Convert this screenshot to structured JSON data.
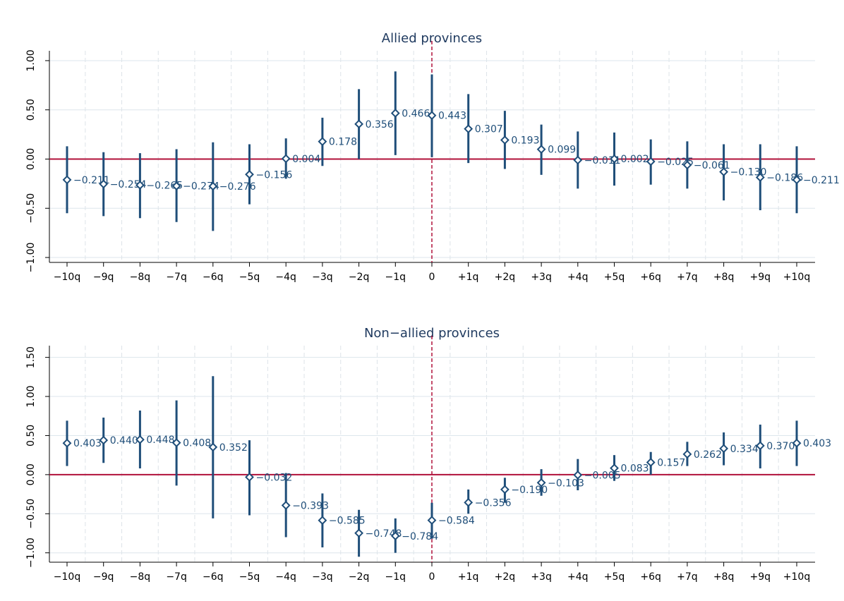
{
  "colors": {
    "ci_line": "#1f4e79",
    "marker_stroke": "#1f4e79",
    "marker_fill": "#ffffff",
    "zero_line": "#b0103a",
    "event_line": "#b0103a",
    "grid": "#dde6ec",
    "vgrid": "#dde3e8",
    "axis": "#000000",
    "title": "#1f3a5f",
    "label": "#1f4e79"
  },
  "chart_data": [
    {
      "type": "scatter",
      "title": "Allied provinces",
      "categories": [
        "−10q",
        "−9q",
        "−8q",
        "−7q",
        "−6q",
        "−5q",
        "−4q",
        "−3q",
        "−2q",
        "−1q",
        "0",
        "+1q",
        "+2q",
        "+3q",
        "+4q",
        "+5q",
        "+6q",
        "+7q",
        "+8q",
        "+9q",
        "+10q"
      ],
      "x": [
        -10,
        -9,
        -8,
        -7,
        -6,
        -5,
        -4,
        -3,
        -2,
        -1,
        0,
        1,
        2,
        3,
        4,
        5,
        6,
        7,
        8,
        9,
        10
      ],
      "values": [
        -0.211,
        -0.254,
        -0.265,
        -0.274,
        -0.276,
        -0.156,
        0.004,
        0.178,
        0.356,
        0.466,
        0.443,
        0.307,
        0.193,
        0.099,
        -0.011,
        0.002,
        -0.025,
        -0.061,
        -0.13,
        -0.186,
        -0.211
      ],
      "value_labels": [
        "−0.211",
        "−0.254",
        "−0.265",
        "−0.274",
        "−0.276",
        "−0.156",
        "0.004",
        "0.178",
        "0.356",
        "0.466",
        "0.443",
        "0.307",
        "0.193",
        "0.099",
        "−0.011",
        "0.002",
        "−0.025",
        "−0.061",
        "−0.130",
        "−0.186",
        "−0.211"
      ],
      "ci_low": [
        -0.55,
        -0.58,
        -0.6,
        -0.64,
        -0.73,
        -0.46,
        -0.2,
        -0.07,
        0.0,
        0.04,
        0.02,
        -0.04,
        -0.1,
        -0.16,
        -0.3,
        -0.27,
        -0.26,
        -0.3,
        -0.42,
        -0.52,
        -0.55
      ],
      "ci_high": [
        0.13,
        0.07,
        0.06,
        0.1,
        0.17,
        0.15,
        0.21,
        0.42,
        0.71,
        0.89,
        0.86,
        0.66,
        0.49,
        0.35,
        0.28,
        0.27,
        0.2,
        0.18,
        0.15,
        0.15,
        0.13
      ],
      "yticks": [
        -1.0,
        -0.5,
        0.0,
        0.5,
        1.0
      ],
      "ytick_labels": [
        "−1.00",
        "−0.50",
        "0.00",
        "0.50",
        "1.00"
      ],
      "ylim": [
        -1.05,
        1.1
      ],
      "reference_y": 0,
      "event_x": 0,
      "grid": true,
      "xlabel": "",
      "ylabel": ""
    },
    {
      "type": "scatter",
      "title": "Non−allied provinces",
      "categories": [
        "−10q",
        "−9q",
        "−8q",
        "−7q",
        "−6q",
        "−5q",
        "−4q",
        "−3q",
        "−2q",
        "−1q",
        "0",
        "+1q",
        "+2q",
        "+3q",
        "+4q",
        "+5q",
        "+6q",
        "+7q",
        "+8q",
        "+9q",
        "+10q"
      ],
      "x": [
        -10,
        -9,
        -8,
        -7,
        -6,
        -5,
        -4,
        -3,
        -2,
        -1,
        0,
        1,
        2,
        3,
        4,
        5,
        6,
        7,
        8,
        9,
        10
      ],
      "values": [
        0.403,
        0.44,
        0.448,
        0.408,
        0.352,
        -0.032,
        -0.393,
        -0.585,
        -0.748,
        -0.784,
        -0.584,
        -0.356,
        -0.19,
        -0.103,
        -0.005,
        0.083,
        0.157,
        0.262,
        0.334,
        0.37,
        0.403
      ],
      "value_labels": [
        "0.403",
        "0.440",
        "0.448",
        "0.408",
        "0.352",
        "−0.032",
        "−0.393",
        "−0.585",
        "−0.748",
        "−0.784",
        "−0.584",
        "−0.356",
        "−0.190",
        "−0.103",
        "−0.005",
        "0.083",
        "0.157",
        "0.262",
        "0.334",
        "0.370",
        "0.403"
      ],
      "ci_low": [
        0.11,
        0.15,
        0.08,
        -0.14,
        -0.56,
        -0.52,
        -0.8,
        -0.93,
        -1.05,
        -1.0,
        -0.82,
        -0.5,
        -0.36,
        -0.27,
        -0.2,
        -0.08,
        0.0,
        0.11,
        0.12,
        0.08,
        0.11
      ],
      "ci_high": [
        0.69,
        0.73,
        0.82,
        0.95,
        1.26,
        0.44,
        0.02,
        -0.24,
        -0.45,
        -0.56,
        -0.36,
        -0.19,
        -0.04,
        0.07,
        0.2,
        0.25,
        0.29,
        0.42,
        0.54,
        0.64,
        0.69
      ],
      "yticks": [
        -1.0,
        -0.5,
        0.0,
        0.5,
        1.0,
        1.5
      ],
      "ytick_labels": [
        "−1.00",
        "−0.50",
        "0.00",
        "0.50",
        "1.00",
        "1.50"
      ],
      "ylim": [
        -1.12,
        1.65
      ],
      "reference_y": 0,
      "event_x": 0,
      "grid": true,
      "xlabel": "",
      "ylabel": ""
    }
  ]
}
